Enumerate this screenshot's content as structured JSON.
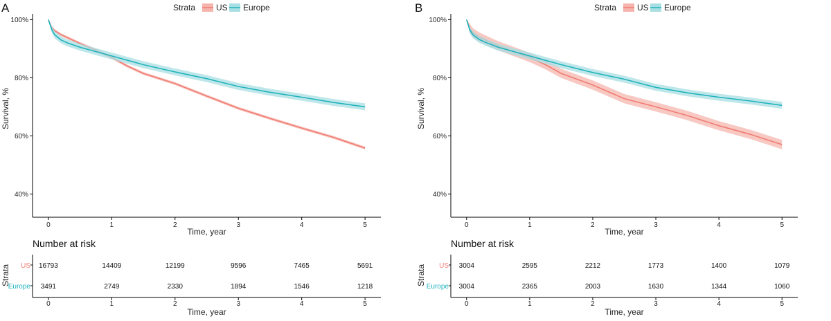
{
  "colors": {
    "us": "#f07c72",
    "europe": "#1fb3bd",
    "us_band": "#f5b5ae",
    "europe_band": "#a9dfe3",
    "axis": "#000000",
    "text": "#222222"
  },
  "strata_legend": {
    "title": "Strata",
    "labels": [
      "US",
      "Europe"
    ]
  },
  "risk_table_title": "Number at risk",
  "risk_ylabel": "Strata",
  "chart_data": [
    {
      "panel_label": "A",
      "type": "line",
      "title": "",
      "xlabel": "Time, year",
      "ylabel": "Survival, %",
      "xlim": [
        -0.25,
        5.25
      ],
      "ylim": [
        0.32,
        1.02
      ],
      "xticks": [
        0,
        1,
        2,
        3,
        4,
        5
      ],
      "yticks": [
        0.4,
        0.6,
        0.8,
        1.0
      ],
      "ytick_labels": [
        "40%",
        "60%",
        "80%",
        "100%"
      ],
      "series": [
        {
          "name": "US",
          "x": [
            0,
            0.05,
            0.1,
            0.2,
            0.3,
            0.5,
            0.75,
            1.0,
            1.25,
            1.5,
            2.0,
            2.5,
            3.0,
            3.5,
            4.0,
            4.5,
            5.0
          ],
          "values": [
            1.0,
            0.975,
            0.962,
            0.948,
            0.938,
            0.918,
            0.895,
            0.87,
            0.84,
            0.815,
            0.78,
            0.737,
            0.695,
            0.66,
            0.627,
            0.595,
            0.558
          ],
          "ci_halfwidth": 0.005
        },
        {
          "name": "Europe",
          "x": [
            0,
            0.05,
            0.1,
            0.2,
            0.3,
            0.5,
            0.75,
            1.0,
            1.25,
            1.5,
            2.0,
            2.5,
            3.0,
            3.5,
            4.0,
            4.5,
            5.0
          ],
          "values": [
            1.0,
            0.968,
            0.948,
            0.93,
            0.92,
            0.905,
            0.89,
            0.875,
            0.86,
            0.845,
            0.82,
            0.797,
            0.77,
            0.75,
            0.733,
            0.715,
            0.7
          ],
          "ci_halfwidth": 0.012
        }
      ],
      "risk_table": {
        "times": [
          "0",
          "1",
          "2",
          "3",
          "4",
          "5"
        ],
        "rows": [
          {
            "name": "US",
            "counts": [
              "16793",
              "14409",
              "12199",
              "9596",
              "7465",
              "5691"
            ]
          },
          {
            "name": "Europe",
            "counts": [
              "3491",
              "2749",
              "2330",
              "1894",
              "1546",
              "1218"
            ]
          }
        ],
        "xlabel": "Time, year"
      }
    },
    {
      "panel_label": "B",
      "type": "line",
      "title": "",
      "xlabel": "Time, year",
      "ylabel": "Survival, %",
      "xlim": [
        -0.25,
        5.25
      ],
      "ylim": [
        0.32,
        1.02
      ],
      "xticks": [
        0,
        1,
        2,
        3,
        4,
        5
      ],
      "yticks": [
        0.4,
        0.6,
        0.8,
        1.0
      ],
      "ytick_labels": [
        "40%",
        "60%",
        "80%",
        "100%"
      ],
      "series": [
        {
          "name": "US",
          "x": [
            0,
            0.05,
            0.1,
            0.2,
            0.3,
            0.5,
            0.75,
            1.0,
            1.25,
            1.5,
            2.0,
            2.5,
            3.0,
            3.5,
            4.0,
            4.5,
            5.0
          ],
          "values": [
            1.0,
            0.97,
            0.955,
            0.94,
            0.93,
            0.91,
            0.89,
            0.87,
            0.845,
            0.815,
            0.775,
            0.728,
            0.7,
            0.67,
            0.635,
            0.605,
            0.57
          ],
          "ci_halfwidth": 0.016
        },
        {
          "name": "Europe",
          "x": [
            0,
            0.05,
            0.1,
            0.2,
            0.3,
            0.5,
            0.75,
            1.0,
            1.25,
            1.5,
            2.0,
            2.5,
            3.0,
            3.5,
            4.0,
            4.5,
            5.0
          ],
          "values": [
            1.0,
            0.965,
            0.948,
            0.932,
            0.922,
            0.905,
            0.89,
            0.875,
            0.86,
            0.845,
            0.818,
            0.795,
            0.767,
            0.748,
            0.733,
            0.72,
            0.705
          ],
          "ci_halfwidth": 0.012
        }
      ],
      "risk_table": {
        "times": [
          "0",
          "1",
          "2",
          "3",
          "4",
          "5"
        ],
        "rows": [
          {
            "name": "US",
            "counts": [
              "3004",
              "2595",
              "2212",
              "1773",
              "1400",
              "1079"
            ]
          },
          {
            "name": "Europe",
            "counts": [
              "3004",
              "2365",
              "2003",
              "1630",
              "1344",
              "1060"
            ]
          }
        ],
        "xlabel": "Time, year"
      }
    }
  ]
}
